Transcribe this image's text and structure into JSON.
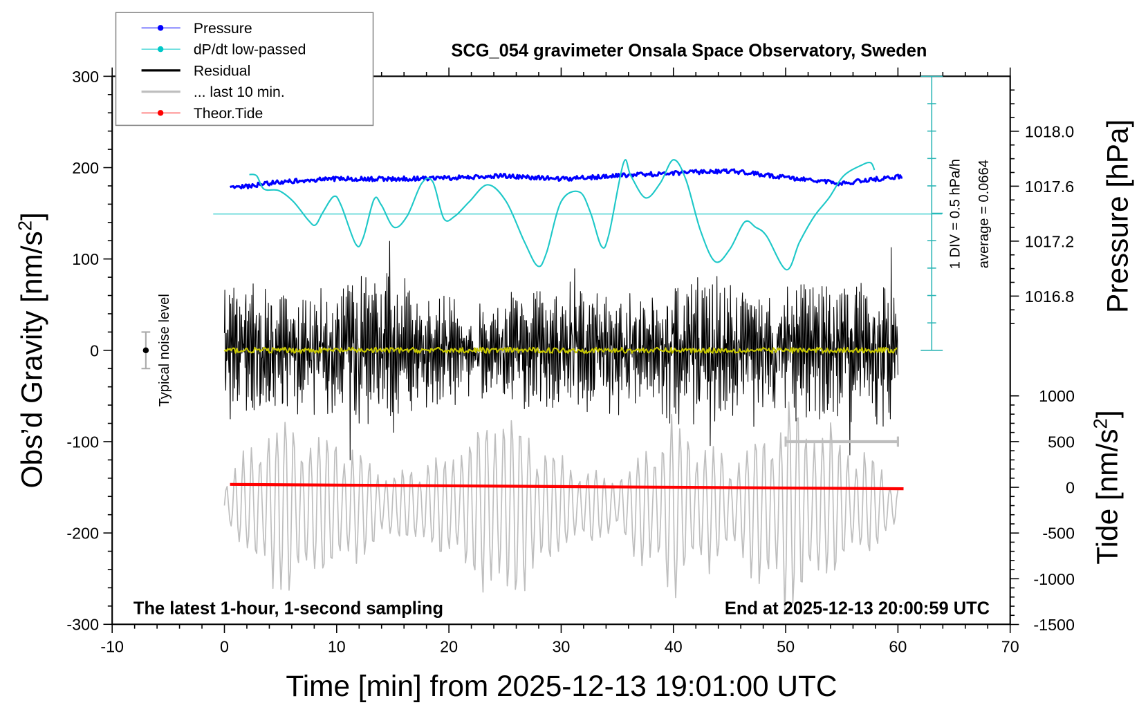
{
  "chart_data": {
    "type": "line",
    "title": "SCG_054 gravimeter Onsala Space Observatory, Sweden",
    "xlabel": "Time [min] from 2025-12-13 19:01:00 UTC",
    "ylabel_left": "Obs'd Gravity [nm/s2]",
    "ylabel_right_top": "Pressure [hPa]",
    "ylabel_right_bottom": "Tide [nm/s2]",
    "xlim": [
      -10,
      70
    ],
    "ylim_gravity": [
      -300,
      300
    ],
    "ylim_pressure": [
      1016.6,
      1018.4
    ],
    "ylim_tide": [
      -1500,
      1000
    ],
    "x_ticks": [
      "-10",
      "0",
      "10",
      "20",
      "30",
      "40",
      "50",
      "60",
      "70"
    ],
    "gravity_ticks": [
      "300",
      "200",
      "100",
      "0",
      "-100",
      "-200",
      "-300"
    ],
    "pressure_ticks": [
      "1018.0",
      "1017.6",
      "1017.2",
      "1016.8"
    ],
    "tide_ticks": [
      "1000",
      "500",
      "0",
      "-500",
      "-1000",
      "-1500"
    ],
    "legend": {
      "placement": "top-left",
      "entries": [
        {
          "label": "Pressure",
          "color": "#0000ff",
          "marker": "dot"
        },
        {
          "label": "dP/dt low-passed",
          "color": "#00c8c8",
          "marker": "dot"
        },
        {
          "label": "Residual",
          "color": "#000000",
          "marker": "line"
        },
        {
          "label": "... last 10 min.",
          "color": "#bebebe",
          "marker": "line"
        },
        {
          "label": "Theor.Tide",
          "color": "#ff0000",
          "marker": "dot"
        }
      ]
    },
    "annotations": {
      "left_bottom": "The latest 1-hour, 1-second sampling",
      "right_bottom": "End at 2025-12-13 20:00:59 UTC",
      "noise_label": "Typical noise level",
      "dpdt_scale": "1 DIV = 0.5 hPa/h",
      "dpdt_average": "average = 0.0664"
    },
    "noise_level": {
      "x": -7,
      "center": 0,
      "halfwidth": 20
    },
    "series": [
      {
        "name": "Pressure",
        "unit": "hPa",
        "x": [
          0.5,
          5,
          10,
          15,
          20,
          25,
          30,
          35,
          40,
          45,
          50,
          55,
          60.5
        ],
        "values": [
          1017.584,
          1017.632,
          1017.653,
          1017.653,
          1017.659,
          1017.675,
          1017.653,
          1017.675,
          1017.696,
          1017.712,
          1017.664,
          1017.621,
          1017.675
        ]
      },
      {
        "name": "dP/dt low-passed",
        "unit": "hPa/h",
        "average": 0.0664,
        "x": [
          2.22,
          2.88,
          3.53,
          4.84,
          6.14,
          7.45,
          8.1,
          8.76,
          9.74,
          10.39,
          11.7,
          12.35,
          13.33,
          13.99,
          15.1,
          16.27,
          17.58,
          18.56,
          19.54,
          20.52,
          21.83,
          23.46,
          25.1,
          26.73,
          27.91,
          28.69,
          30.0,
          31.63,
          32.61,
          33.59,
          34.25,
          35.56,
          36.21,
          37.52,
          38.82,
          40.0,
          41.11,
          42.42,
          43.73,
          45.03,
          46.34,
          47.32,
          48.3,
          50.07,
          51.24,
          52.55,
          53.86,
          55.16,
          56.8,
          57.58,
          57.91
        ],
        "values": [
          0.788,
          0.762,
          0.521,
          0.494,
          0.294,
          -0.04,
          -0.134,
          0.093,
          0.387,
          0.227,
          -0.482,
          -0.375,
          0.334,
          0.227,
          -0.174,
          0.026,
          0.628,
          0.655,
          -0.014,
          0.026,
          0.294,
          0.601,
          0.294,
          -0.442,
          -0.883,
          -0.642,
          0.294,
          0.468,
          0.093,
          -0.522,
          -0.308,
          1.002,
          0.762,
          0.361,
          0.628,
          1.056,
          0.695,
          -0.241,
          -0.803,
          -0.575,
          -0.081,
          -0.174,
          -0.335,
          -0.95,
          -0.442,
          0.026,
          0.361,
          0.762,
          0.962,
          1.002,
          0.869
        ]
      },
      {
        "name": "Residual",
        "unit": "nm/s2",
        "description": "envelope amplitude",
        "x": [
          0,
          2.5,
          5,
          7.5,
          10,
          12.5,
          15,
          17.5,
          20,
          22.5,
          25,
          27.5,
          30,
          32.5,
          35,
          37.5,
          40,
          42.5,
          45,
          47.5,
          50,
          52.5,
          55,
          57.5,
          60
        ],
        "values": [
          70,
          80,
          70,
          75,
          70,
          80,
          90,
          60,
          60,
          50,
          65,
          75,
          65,
          70,
          70,
          60,
          85,
          90,
          70,
          65,
          70,
          75,
          80,
          80,
          70
        ]
      },
      {
        "name": "... last 10 min.",
        "unit": "nm/s2",
        "offset": -170,
        "description": "envelope amplitude",
        "x": [
          0,
          5,
          10,
          15,
          20,
          25,
          30,
          35,
          40,
          45,
          50,
          55,
          60
        ],
        "values": [
          30,
          120,
          90,
          40,
          70,
          130,
          60,
          40,
          110,
          60,
          130,
          90,
          30
        ]
      },
      {
        "name": "Theor.Tide",
        "unit": "nm/s2",
        "x": [
          0.5,
          60.5
        ],
        "values": [
          32,
          -16
        ]
      }
    ],
    "last10_bar": {
      "x_range": [
        50,
        60
      ],
      "y": -100
    }
  }
}
